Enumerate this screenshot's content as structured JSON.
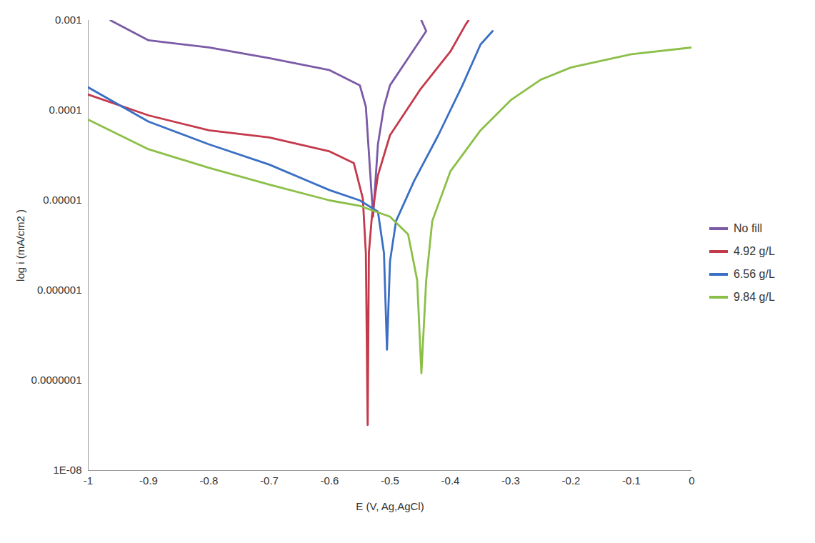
{
  "chart_data": {
    "type": "line",
    "xlabel": "E (V, Ag,AgCl)",
    "ylabel": "log i (mA/cm2 )",
    "xlim": [
      -1,
      0
    ],
    "xticks": [
      -1,
      -0.9,
      -0.8,
      -0.7,
      -0.6,
      -0.5,
      -0.4,
      -0.3,
      -0.2,
      -0.1,
      0
    ],
    "ylim": [
      1e-08,
      0.001
    ],
    "yticks": [
      {
        "value": 1e-08,
        "label": "1E-08"
      },
      {
        "value": 1e-07,
        "label": "0.0000001"
      },
      1e-06,
      1e-05,
      0.0001,
      0.001
    ],
    "log": "y",
    "grid": false,
    "legend": "right",
    "series": [
      {
        "name": "No fill",
        "color": "#7b5aa6",
        "x": [
          -0.963,
          -0.9,
          -0.8,
          -0.7,
          -0.6,
          -0.55,
          -0.54,
          -0.528,
          -0.52,
          -0.51,
          -0.5,
          -0.47,
          -0.44,
          -0.448
        ],
        "values": [
          0.001,
          0.0006,
          0.0005,
          0.00038,
          0.00028,
          0.00019,
          0.00011,
          6.6e-06,
          4.2e-05,
          0.00011,
          0.00019,
          0.00038,
          0.00076,
          0.001
        ]
      },
      {
        "name": "4.92 g/L",
        "color": "#c4394b",
        "x": [
          -1,
          -0.9,
          -0.8,
          -0.7,
          -0.6,
          -0.56,
          -0.545,
          -0.54,
          -0.537,
          -0.535,
          -0.53,
          -0.52,
          -0.5,
          -0.45,
          -0.4,
          -0.375,
          -0.37
        ],
        "values": [
          0.00015,
          8.8e-05,
          6e-05,
          5e-05,
          3.5e-05,
          2.6e-05,
          1.05e-05,
          2.6e-06,
          3.2e-08,
          2.6e-06,
          6.6e-06,
          1.9e-05,
          5.3e-05,
          0.00017,
          0.00045,
          0.00089,
          0.001
        ]
      },
      {
        "name": "6.56 g/L",
        "color": "#3a6fc4",
        "x": [
          -1,
          -0.9,
          -0.8,
          -0.7,
          -0.6,
          -0.55,
          -0.52,
          -0.51,
          -0.505,
          -0.5,
          -0.49,
          -0.46,
          -0.42,
          -0.38,
          -0.35,
          -0.33
        ],
        "values": [
          0.00018,
          7.5e-05,
          4.2e-05,
          2.5e-05,
          1.3e-05,
          1e-05,
          7.5e-06,
          2.6e-06,
          2.2e-07,
          2.1e-06,
          5.9e-06,
          1.65e-05,
          5.3e-05,
          0.00019,
          0.00054,
          0.00076
        ]
      },
      {
        "name": "9.84 g/L",
        "color": "#8cbf48",
        "x": [
          -1,
          -0.9,
          -0.8,
          -0.7,
          -0.6,
          -0.55,
          -0.5,
          -0.47,
          -0.455,
          -0.448,
          -0.44,
          -0.43,
          -0.4,
          -0.35,
          -0.3,
          -0.25,
          -0.2,
          -0.1,
          0
        ],
        "values": [
          7.9e-05,
          3.7e-05,
          2.3e-05,
          1.5e-05,
          1e-05,
          8.7e-06,
          6.6e-06,
          4.2e-06,
          1.3e-06,
          1.2e-07,
          1.3e-06,
          5.9e-06,
          2.1e-05,
          6e-05,
          0.00013,
          0.00022,
          0.0003,
          0.00042,
          0.0005
        ]
      }
    ]
  }
}
